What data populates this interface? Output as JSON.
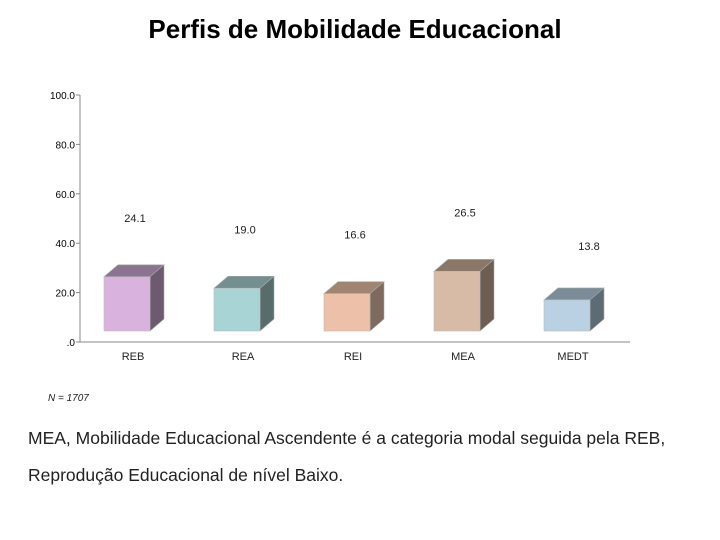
{
  "chart_data": {
    "type": "bar",
    "title": "Perfis de Mobilidade Educacional",
    "categories": [
      "REB",
      "REA",
      "REI",
      "MEA",
      "MEDT"
    ],
    "values": [
      24.1,
      19.0,
      16.6,
      26.5,
      13.8
    ],
    "value_labels": [
      "24.1",
      "19.0",
      "16.6",
      "26.5",
      "13.8"
    ],
    "ylim": [
      0,
      100
    ],
    "yticks": [
      0,
      20,
      40,
      60,
      80,
      100
    ],
    "ytick_labels": [
      ".0",
      "20.0",
      "40.0",
      "60.0",
      "80.0",
      "100.0"
    ],
    "grid": false,
    "legend": "none",
    "colors": [
      {
        "front": "#d9b3dd",
        "side": "#6e5a70",
        "top": "#8c7390"
      },
      {
        "front": "#a9d4d5",
        "side": "#586c6c",
        "top": "#748f90"
      },
      {
        "front": "#ecc0a9",
        "side": "#7e6a5e",
        "top": "#a08573"
      },
      {
        "front": "#d8bba7",
        "side": "#6e5d52",
        "top": "#8b7767"
      },
      {
        "front": "#b9d1e3",
        "side": "#5d6b75",
        "top": "#7b8c98"
      }
    ]
  },
  "sample_note": "N = 1707",
  "caption": "MEA, Mobilidade Educacional Ascendente é a categoria modal seguida pela REB, Reprodução Educacional de nível Baixo."
}
